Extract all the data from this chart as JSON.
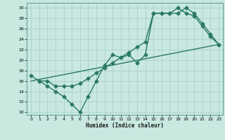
{
  "title": "",
  "xlabel": "Humidex (Indice chaleur)",
  "xlim": [
    -0.5,
    23.5
  ],
  "ylim": [
    9.5,
    31
  ],
  "yticks": [
    10,
    12,
    14,
    16,
    18,
    20,
    22,
    24,
    26,
    28,
    30
  ],
  "xticks": [
    0,
    1,
    2,
    3,
    4,
    5,
    6,
    7,
    8,
    9,
    10,
    11,
    12,
    13,
    14,
    15,
    16,
    17,
    18,
    19,
    20,
    21,
    22,
    23
  ],
  "bg_color": "#c8e8e0",
  "line_color": "#2a7868",
  "line1_x": [
    0,
    1,
    2,
    3,
    4,
    5,
    6,
    7,
    8,
    9,
    10,
    11,
    12,
    13,
    14,
    15,
    16,
    17,
    18,
    19,
    20,
    21,
    22,
    23
  ],
  "line1_y": [
    17,
    16,
    15,
    14,
    13,
    11.5,
    10,
    13,
    16,
    19,
    21,
    20.5,
    21,
    19.5,
    21,
    29,
    29,
    29,
    29,
    30,
    29,
    27,
    25,
    23
  ],
  "line2_x": [
    1,
    2,
    3,
    4,
    5,
    6,
    7,
    8,
    9,
    10,
    11,
    12,
    13,
    14,
    15,
    16,
    17,
    18,
    19,
    20,
    21,
    22,
    23
  ],
  "line2_y": [
    16,
    16,
    15,
    15,
    15,
    15.5,
    16.5,
    17.5,
    18.5,
    19.5,
    20.5,
    21.5,
    22.5,
    23.5,
    29,
    29,
    29,
    30,
    29,
    28.5,
    26.5,
    24.5,
    23
  ],
  "line3_x": [
    0,
    23
  ],
  "line3_y": [
    16,
    23
  ],
  "marker": "D",
  "markersize": 2.5,
  "linewidth": 1.0
}
